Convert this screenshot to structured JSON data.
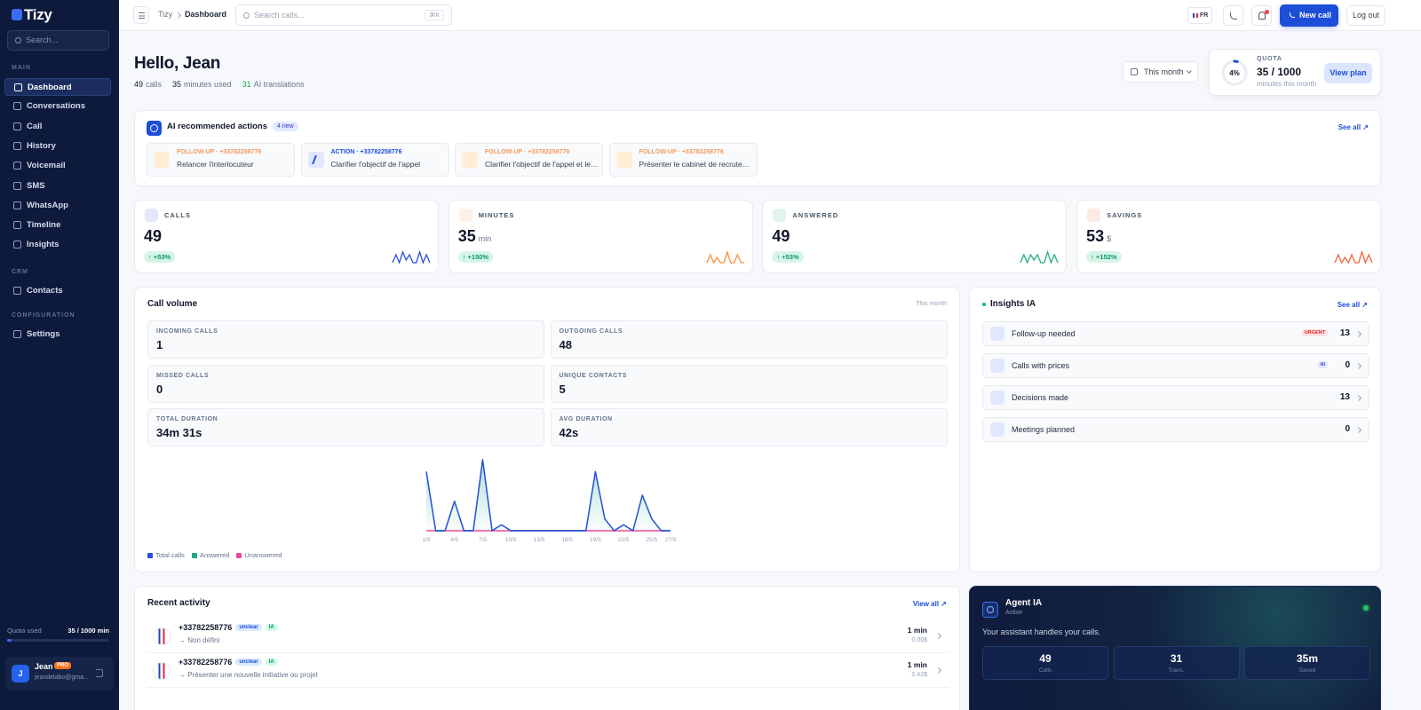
{
  "sidebar": {
    "logo": "Tizy",
    "search": "Search...",
    "sections": [
      {
        "title": "MAIN",
        "items": [
          "Dashboard",
          "Conversations",
          "Call",
          "History",
          "Voicemail",
          "SMS",
          "WhatsApp",
          "Timeline",
          "Insights"
        ]
      },
      {
        "title": "CRM",
        "items": [
          "Contacts"
        ]
      },
      {
        "title": "CONFIGURATION",
        "items": [
          "Settings"
        ]
      }
    ],
    "quota_label": "Quota used",
    "quota_value": "35 / 1000 min",
    "user": {
      "initial": "J",
      "name": "Jean",
      "badge": "PRO",
      "email": "jeandelabo@gma..."
    }
  },
  "topbar": {
    "breadcrumb": [
      "Tizy",
      "Dashboard"
    ],
    "search": "Search calls...",
    "shortcut": "⌘K",
    "lang": "FR",
    "new_call": "New call",
    "logout": "Log out"
  },
  "greeting": {
    "title": "Hello, Jean",
    "stats": [
      {
        "value": "49",
        "label": "calls"
      },
      {
        "value": "35",
        "label": "minutes used"
      },
      {
        "value": "31",
        "label": "AI translations"
      }
    ],
    "period": "This month"
  },
  "quota": {
    "percent": "4%",
    "label": "QUOTA",
    "value": "35 / 1000",
    "sub": "minutes this month",
    "button": "View plan"
  },
  "ai_actions": {
    "title": "AI recommended actions",
    "badge": "4 new",
    "see_all": "See all ↗",
    "items": [
      {
        "kind": "FOLLOW-UP · +33782258776",
        "text": "Relancer l'interlocuteur",
        "color": "#f59a5b"
      },
      {
        "kind": "ACTION · +33782258776",
        "text": "Clarifier l'objectif de l'appel",
        "color": "#1d4ed8"
      },
      {
        "kind": "FOLLOW-UP · +33782258776",
        "text": "Clarifier l'objectif de l'appel et les ...",
        "color": "#f59a5b"
      },
      {
        "kind": "FOLLOW-UP · +33782258776",
        "text": "Présenter le cabinet de recrutem...",
        "color": "#f59a5b"
      }
    ]
  },
  "stat_cards": [
    {
      "label": "CALLS",
      "value": "49",
      "change": "↑ +53%",
      "color": "#2b4de0",
      "spark": [
        1,
        4,
        1,
        5,
        2,
        4,
        1,
        1,
        5,
        1,
        4,
        1
      ]
    },
    {
      "label": "MINUTES",
      "value": "35",
      "unit": "min",
      "change": "↑ +150%",
      "color": "#f7903f",
      "spark": [
        1,
        4,
        1,
        3,
        1,
        1,
        5,
        1,
        1,
        4,
        1,
        1
      ]
    },
    {
      "label": "ANSWERED",
      "value": "49",
      "change": "↑ +53%",
      "color": "#22b07d",
      "spark": [
        1,
        4,
        1,
        4,
        2,
        4,
        1,
        1,
        5,
        1,
        4,
        1
      ]
    },
    {
      "label": "SAVINGS",
      "value": "53",
      "unit": "$",
      "change": "↑ +152%",
      "color": "#f2643a",
      "spark": [
        1,
        4,
        1,
        3,
        1,
        4,
        1,
        1,
        5,
        1,
        4,
        1
      ]
    }
  ],
  "call_volume": {
    "title": "Call volume",
    "period": "This month",
    "metrics": [
      {
        "label": "INCOMING CALLS",
        "value": "1"
      },
      {
        "label": "OUTGOING CALLS",
        "value": "48"
      },
      {
        "label": "MISSED CALLS",
        "value": "0"
      },
      {
        "label": "UNIQUE CONTACTS",
        "value": "5"
      },
      {
        "label": "TOTAL DURATION",
        "value": "34m 31s"
      },
      {
        "label": "AVG DURATION",
        "value": "42s"
      }
    ]
  },
  "chart_data": {
    "type": "line",
    "categories": [
      "1/5",
      null,
      null,
      "4/5",
      null,
      null,
      "7/5",
      null,
      null,
      "10/5",
      null,
      null,
      "13/5",
      null,
      null,
      "16/5",
      null,
      null,
      "19/5",
      null,
      null,
      "22/5",
      null,
      null,
      "25/5",
      null,
      "27/5"
    ],
    "series": [
      {
        "name": "Total calls",
        "color": "#2b4de0",
        "values": [
          10,
          0,
          0,
          5,
          0,
          0,
          12,
          0,
          1,
          0,
          0,
          0,
          0,
          0,
          0,
          0,
          0,
          0,
          10,
          2,
          0,
          1,
          0,
          6,
          2,
          0,
          0
        ]
      },
      {
        "name": "Answered",
        "color": "#1fa88a",
        "values": [
          10,
          0,
          0,
          5,
          0,
          0,
          12,
          0,
          1,
          0,
          0,
          0,
          0,
          0,
          0,
          0,
          0,
          0,
          10,
          2,
          0,
          1,
          0,
          6,
          2,
          0,
          0
        ]
      },
      {
        "name": "Unanswered",
        "color": "#ec4899",
        "values": [
          0,
          0,
          0,
          0,
          0,
          0,
          0,
          0,
          0,
          0,
          0,
          0,
          0,
          0,
          0,
          0,
          0,
          0,
          0,
          0,
          0,
          0,
          0,
          0,
          0,
          0,
          0
        ]
      }
    ],
    "ylim": [
      0,
      12
    ]
  },
  "insights": {
    "title": "Insights IA",
    "see_all": "See all ↗",
    "items": [
      {
        "label": "Follow-up needed",
        "badge": "URGENT",
        "value": "13"
      },
      {
        "label": "Calls with prices",
        "badge": "AI",
        "value": "0"
      },
      {
        "label": "Decisions made",
        "value": "13"
      },
      {
        "label": "Meetings planned",
        "value": "0"
      }
    ]
  },
  "recent": {
    "title": "Recent activity",
    "view_all": "View all ↗",
    "items": [
      {
        "number": "+33782258776",
        "tags": [
          "unclear",
          "IA"
        ],
        "summary": "→ Non défini",
        "duration": "1 min",
        "cost": "0.00$"
      },
      {
        "number": "+33782258776",
        "tags": [
          "unclear",
          "IA"
        ],
        "summary": "→ Présenter une nouvelle initiative ou projet",
        "duration": "1 min",
        "cost": "0.42$"
      }
    ]
  },
  "agent": {
    "title": "Agent IA",
    "status": "Active",
    "desc": "Your assistant handles your calls.",
    "stats": [
      {
        "value": "49",
        "label": "Calls"
      },
      {
        "value": "31",
        "label": "Trans."
      },
      {
        "value": "35m",
        "label": "Saved"
      }
    ]
  }
}
